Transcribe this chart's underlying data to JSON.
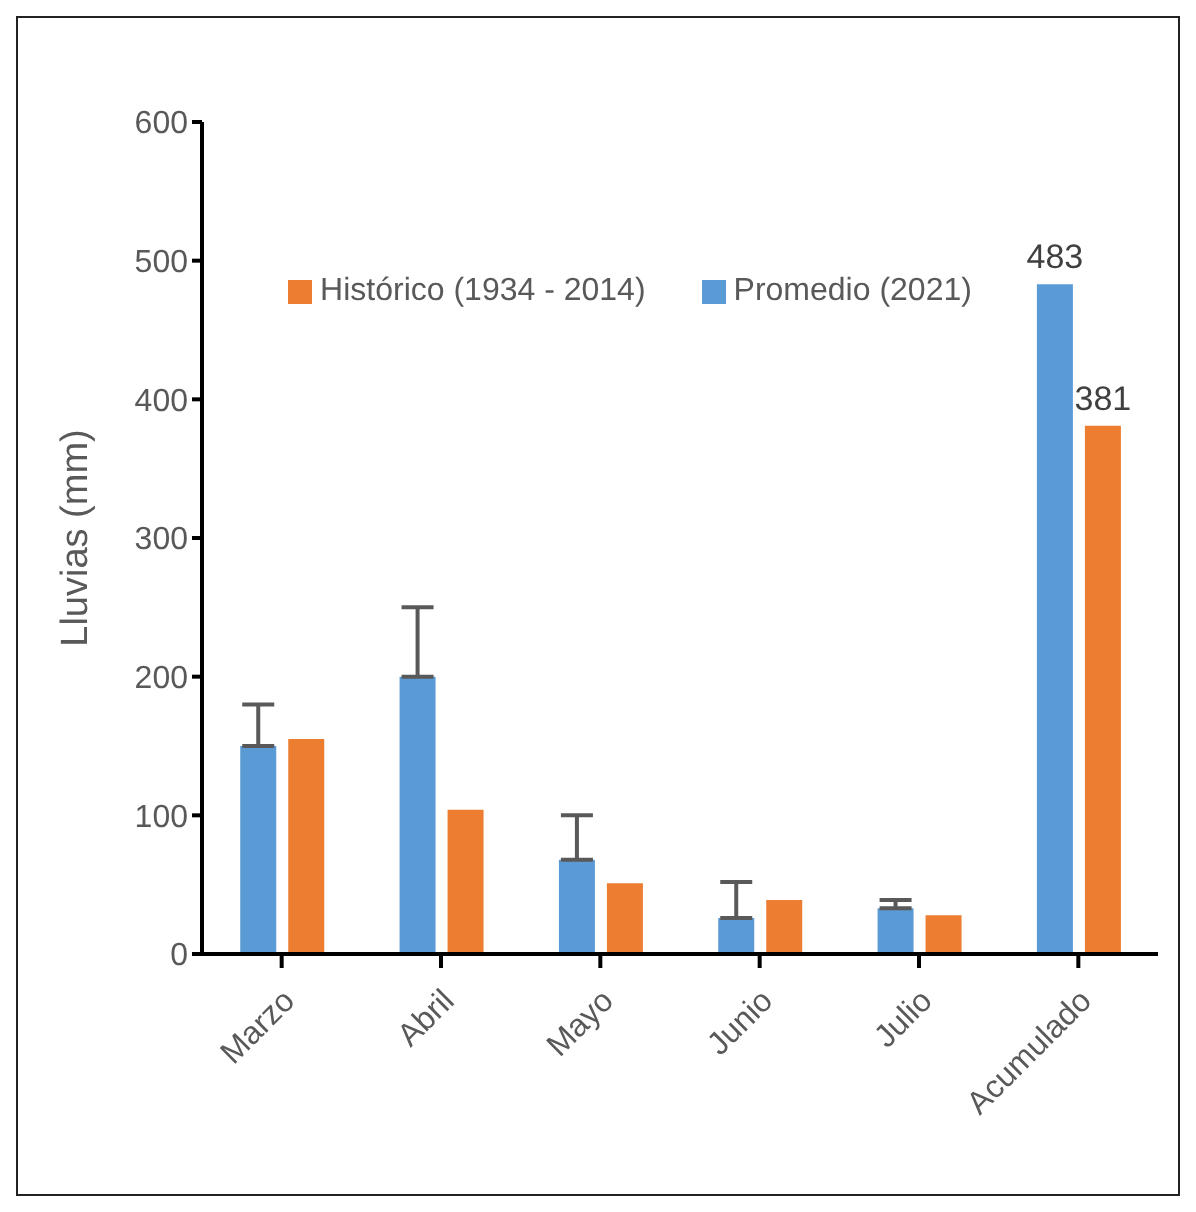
{
  "chart_data": {
    "type": "bar",
    "ylabel": "Lluvias (mm)",
    "categories": [
      "Marzo",
      "Abril",
      "Mayo",
      "Junio",
      "Julio",
      "Acumulado"
    ],
    "series": [
      {
        "name": "Promedio (2021)",
        "color": "#5b9bd5",
        "values": [
          150,
          200,
          68,
          26,
          33,
          483
        ],
        "errors": [
          [
            150,
            180
          ],
          [
            200,
            250
          ],
          [
            68,
            100
          ],
          [
            26,
            52
          ],
          [
            33,
            39
          ],
          null
        ],
        "value_labels": [
          null,
          null,
          null,
          null,
          null,
          "483"
        ]
      },
      {
        "name": "Histórico (1934 - 2014)",
        "color": "#ed7d31",
        "values": [
          155,
          104,
          51,
          39,
          28,
          381
        ],
        "value_labels": [
          null,
          null,
          null,
          null,
          null,
          "381"
        ]
      }
    ],
    "ylim": [
      0,
      600
    ],
    "yticks": [
      0,
      100,
      200,
      300,
      400,
      500,
      600
    ],
    "grid": false,
    "legend": "top"
  }
}
